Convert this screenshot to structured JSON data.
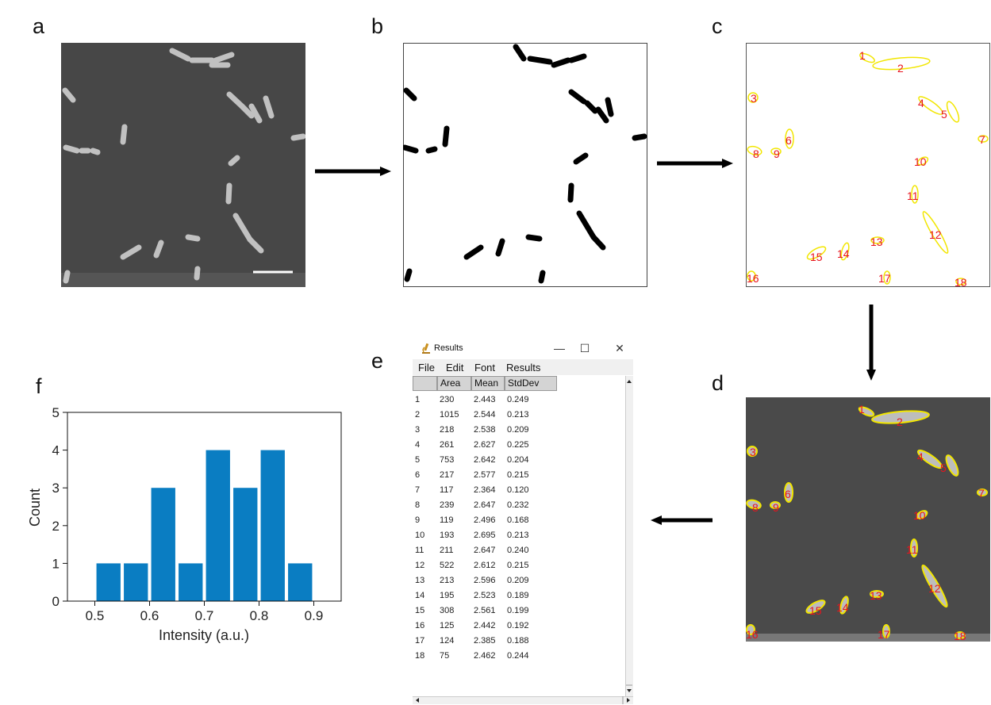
{
  "panel_labels": {
    "a": "a",
    "b": "b",
    "c": "c",
    "d": "d",
    "e": "e",
    "f": "f"
  },
  "segmentation_numbers": [
    "1",
    "2",
    "3",
    "4",
    "5",
    "6",
    "7",
    "8",
    "9",
    "10",
    "11",
    "12",
    "13",
    "14",
    "15",
    "16",
    "17",
    "18"
  ],
  "results_window": {
    "title": "Results",
    "window_buttons": {
      "minimize": "—",
      "maximize": "☐",
      "close": "✕"
    },
    "menu": [
      "File",
      "Edit",
      "Font",
      "Results"
    ],
    "columns": [
      "",
      "Area",
      "Mean",
      "StdDev"
    ],
    "rows": [
      [
        "1",
        "230",
        "2.443",
        "0.249"
      ],
      [
        "2",
        "1015",
        "2.544",
        "0.213"
      ],
      [
        "3",
        "218",
        "2.538",
        "0.209"
      ],
      [
        "4",
        "261",
        "2.627",
        "0.225"
      ],
      [
        "5",
        "753",
        "2.642",
        "0.204"
      ],
      [
        "6",
        "217",
        "2.577",
        "0.215"
      ],
      [
        "7",
        "117",
        "2.364",
        "0.120"
      ],
      [
        "8",
        "239",
        "2.647",
        "0.232"
      ],
      [
        "9",
        "119",
        "2.496",
        "0.168"
      ],
      [
        "10",
        "193",
        "2.695",
        "0.213"
      ],
      [
        "11",
        "211",
        "2.647",
        "0.240"
      ],
      [
        "12",
        "522",
        "2.612",
        "0.215"
      ],
      [
        "13",
        "213",
        "2.596",
        "0.209"
      ],
      [
        "14",
        "195",
        "2.523",
        "0.189"
      ],
      [
        "15",
        "308",
        "2.561",
        "0.199"
      ],
      [
        "16",
        "125",
        "2.442",
        "0.192"
      ],
      [
        "17",
        "124",
        "2.385",
        "0.188"
      ],
      [
        "18",
        "75",
        "2.462",
        "0.244"
      ]
    ]
  },
  "chart_data": {
    "type": "bar",
    "categories": [
      "0.525",
      "0.575",
      "0.625",
      "0.675",
      "0.725",
      "0.775",
      "0.825",
      "0.875"
    ],
    "values": [
      1,
      1,
      3,
      1,
      4,
      3,
      4,
      1
    ],
    "bar_color": "#0a7dc2",
    "title": "",
    "xlabel": "Intensity (a.u.)",
    "ylabel": "Count",
    "xlim": [
      0.45,
      0.95
    ],
    "ylim": [
      0,
      5
    ],
    "xticks": [
      "0.5",
      "0.6",
      "0.7",
      "0.8",
      "0.9"
    ],
    "yticks": [
      "0",
      "1",
      "2",
      "3",
      "4",
      "5"
    ],
    "grid": false
  },
  "colors": {
    "outline": "#f2e600",
    "number": "#e8141e",
    "arrow": "#000000",
    "micro_bg": "#4a4a4a"
  }
}
